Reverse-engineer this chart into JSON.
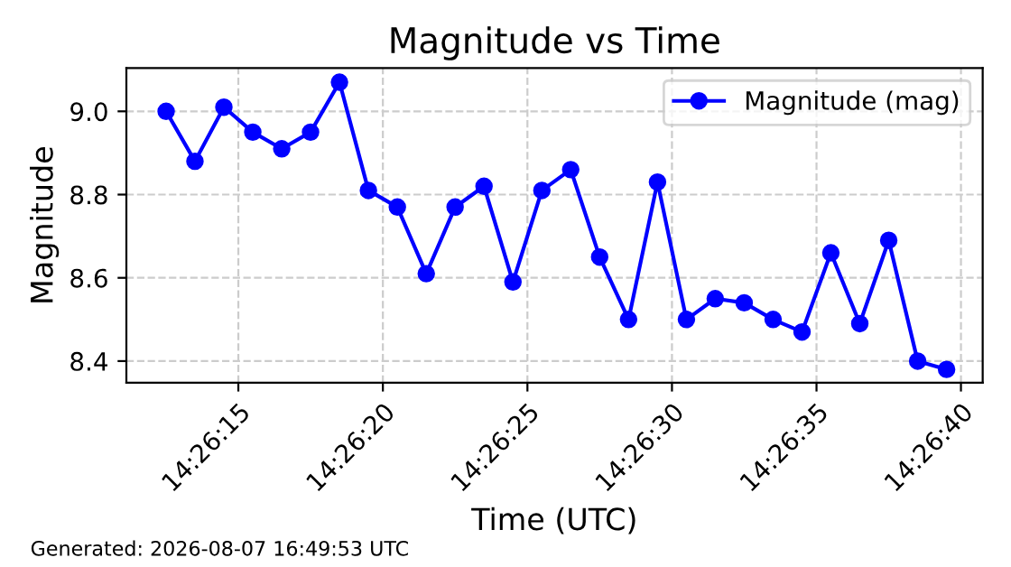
{
  "chart_data": {
    "type": "line",
    "title": "Magnitude vs Time",
    "xlabel": "Time (UTC)",
    "ylabel": "Magnitude",
    "annotations": [
      "Generated: 2026-08-07 16:49:53 UTC"
    ],
    "x": [
      14.436806,
      14.437083,
      14.437361,
      14.437639,
      14.437917,
      14.438194,
      14.438472,
      14.43875,
      14.439028,
      14.439306,
      14.439583,
      14.439861,
      14.440139,
      14.440417,
      14.440694,
      14.440972,
      14.44125,
      14.441528,
      14.441806,
      14.442083,
      14.442361,
      14.442639,
      14.442917,
      14.443194,
      14.443472,
      14.44375,
      14.444028,
      14.444306
    ],
    "series": [
      {
        "name": "Magnitude (mag)",
        "color": "#0000ff",
        "values": [
          9.0,
          8.88,
          9.01,
          8.95,
          8.91,
          8.95,
          9.07,
          8.81,
          8.77,
          8.61,
          8.77,
          8.82,
          8.59,
          8.81,
          8.86,
          8.65,
          8.5,
          8.83,
          8.5,
          8.55,
          8.54,
          8.5,
          8.47,
          8.66,
          8.49,
          8.69,
          8.4,
          8.38
        ]
      }
    ],
    "xlim": [
      14.436424,
      14.444653
    ],
    "xticks": [
      {
        "value": 14.4375,
        "label": "14:26:15"
      },
      {
        "value": 14.438889,
        "label": "14:26:20"
      },
      {
        "value": 14.440278,
        "label": "14:26:25"
      },
      {
        "value": 14.441667,
        "label": "14:26:30"
      },
      {
        "value": 14.443056,
        "label": "14:26:35"
      },
      {
        "value": 14.444444,
        "label": "14:26:40"
      }
    ],
    "ylim": [
      8.348,
      9.104
    ],
    "yticks": [
      8.4,
      8.6,
      8.8,
      {
        "value": 9,
        "label": "9.0"
      }
    ],
    "grid": true,
    "legend": "top right",
    "marker": "circle",
    "line_style": "solid"
  }
}
